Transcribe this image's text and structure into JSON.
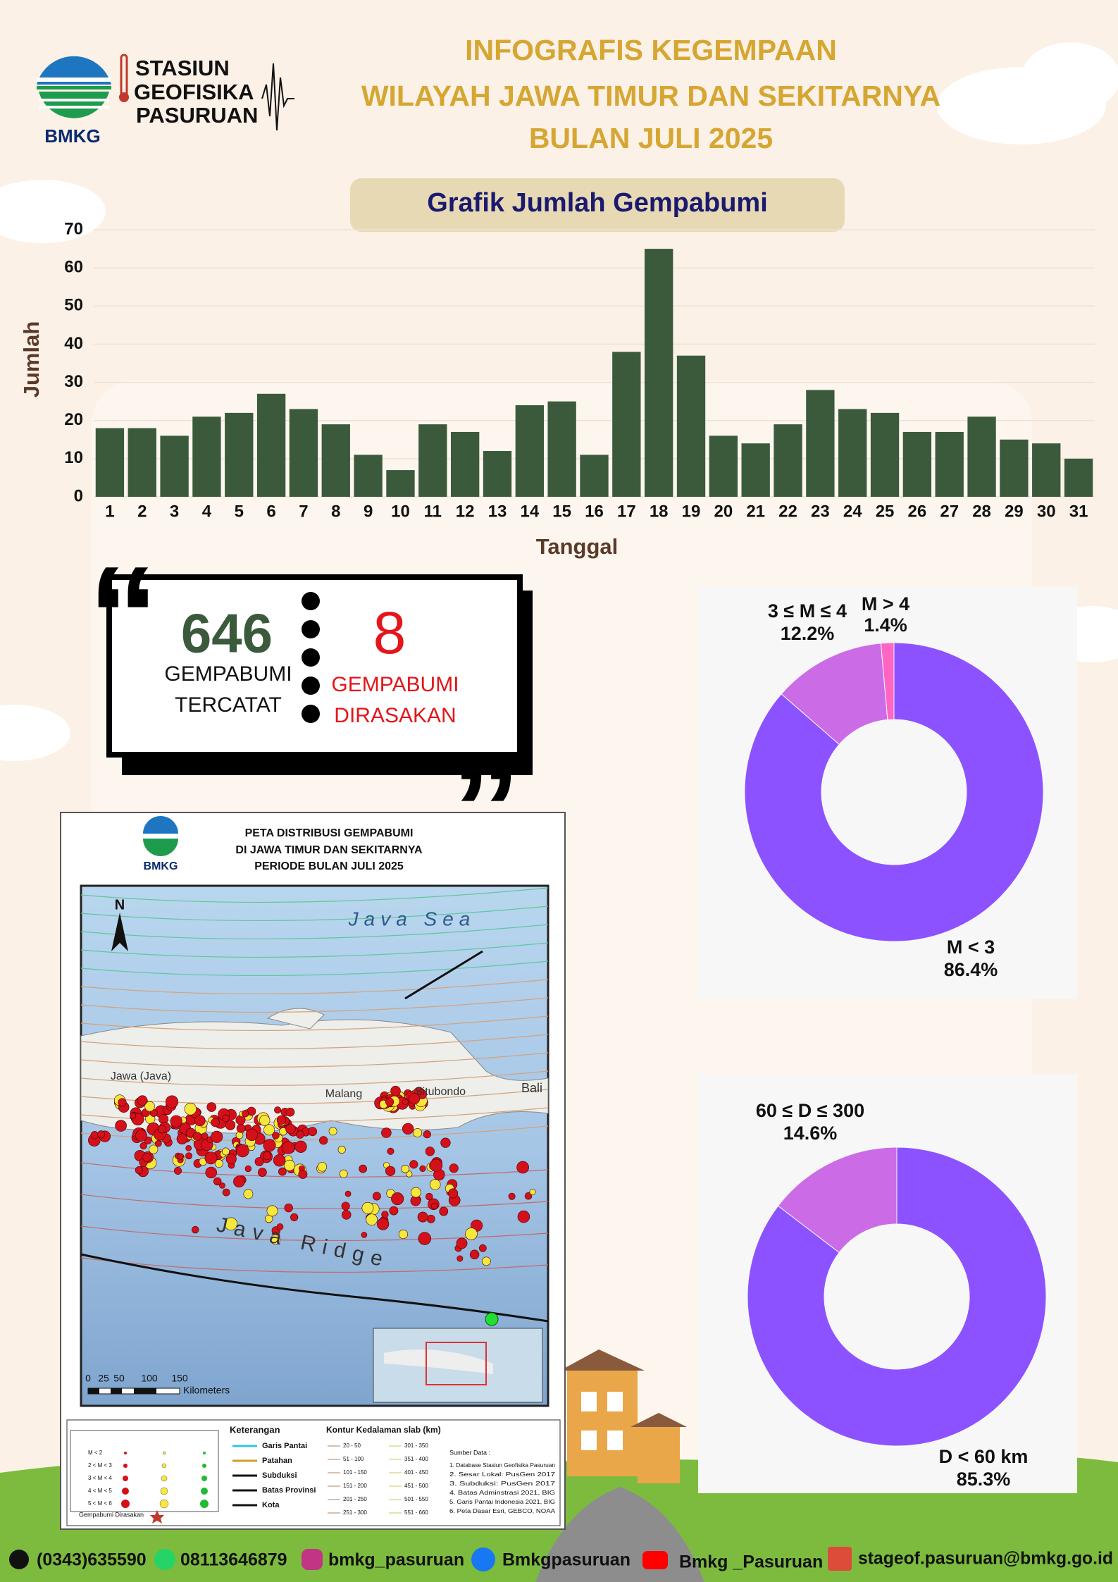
{
  "header": {
    "logo_text": "BMKG",
    "station": [
      "STASIUN",
      "GEOFISIKA",
      "PASURUAN"
    ],
    "title": [
      "INFOGRAFIS KEGEMPAAN",
      "WILAYAH JAWA TIMUR DAN SEKITARNYA",
      "BULAN JULI 2025"
    ]
  },
  "chart_data": [
    {
      "type": "bar",
      "title": "Grafik Jumlah Gempabumi",
      "xlabel": "Tanggal",
      "ylabel": "Jumlah",
      "categories": [
        "1",
        "2",
        "3",
        "4",
        "5",
        "6",
        "7",
        "8",
        "9",
        "10",
        "11",
        "12",
        "13",
        "14",
        "15",
        "16",
        "17",
        "18",
        "19",
        "20",
        "21",
        "22",
        "23",
        "24",
        "25",
        "26",
        "27",
        "28",
        "29",
        "30",
        "31"
      ],
      "values": [
        18,
        18,
        16,
        21,
        22,
        27,
        23,
        19,
        11,
        7,
        19,
        17,
        12,
        24,
        25,
        11,
        38,
        65,
        37,
        16,
        14,
        19,
        28,
        23,
        22,
        17,
        17,
        21,
        15,
        14,
        10
      ],
      "color": "#3b5a3c",
      "ylim": [
        0,
        70
      ],
      "yticks": [
        0,
        10,
        20,
        30,
        40,
        50,
        60,
        70
      ],
      "grid": true
    },
    {
      "type": "pie",
      "donut": true,
      "categories": [
        "M < 3",
        "3 ≤ M ≤ 4",
        "M > 4"
      ],
      "values": [
        86.4,
        12.2,
        1.4
      ],
      "value_labels": [
        "86.4%",
        "12.2%",
        "1.4%"
      ],
      "colors": [
        "#8c52ff",
        "#cb6ce6",
        "#ff66c4"
      ]
    },
    {
      "type": "pie",
      "donut": true,
      "categories": [
        "D < 60 km",
        "60 ≤ D ≤ 300"
      ],
      "values": [
        85.3,
        14.6
      ],
      "value_labels": [
        "85.3%",
        "14.6%"
      ],
      "colors": [
        "#8c52ff",
        "#cb6ce6"
      ]
    }
  ],
  "stats": {
    "recorded": 646,
    "recorded_label": [
      "GEMPABUMI",
      "TERCATAT"
    ],
    "felt": 8,
    "felt_label": [
      "GEMPABUMI",
      "DIRASAKAN"
    ]
  },
  "map": {
    "logo_text": "BMKG",
    "title": [
      "PETA DISTRIBUSI GEMPABUMI",
      "DI JAWA TIMUR DAN SEKITARNYA",
      "PERIODE BULAN  JULI 2025"
    ],
    "north": "N",
    "places": [
      "Java Sea",
      "Java Ridge",
      "Jawa (Java)",
      "Malang",
      "Situbondo",
      "Bali"
    ],
    "scale": [
      "0",
      "25",
      "50",
      "100",
      "150",
      "Kilometers"
    ],
    "magnitudes": [
      "M < 2",
      "2 < M < 3",
      "3 < M < 4",
      "4 < M < 5",
      "5 < M < 6"
    ],
    "felt": "Gempabumi Dirasakan",
    "legend_title": "Keterangan",
    "legend_items": [
      "Garis Pantai",
      "Patahan",
      "Subduksi",
      "Batas Provinsi",
      "Kota"
    ],
    "contour_title": "Kontur Kedalaman slab (km)",
    "contours": [
      "20 - 50",
      "51 - 100",
      "101 - 150",
      "151 - 200",
      "201 - 250",
      "251 - 300",
      "301 - 350",
      "351 - 400",
      "401 - 450",
      "451 - 500",
      "501 - 550",
      "551 - 660"
    ],
    "sources_title": "Sumber Data :",
    "sources": [
      "1. Database Stasiun Geofisika Pasuruan",
      "2. Sesar Lokal: PusGen 2017",
      "3. Subduksi: PusGen 2017",
      "4. Batas Adminstrasi 2021, BIG",
      "5. Garis Pantai Indonesia 2021, BIG",
      "6. Peta Dasar Esri, GEBCO, NOAA"
    ]
  },
  "footer": {
    "phone": "(0343)635590",
    "whatsapp": "08113646879",
    "instagram": "bmkg_pasuruan",
    "facebook": "Bmkgpasuruan",
    "youtube": "Bmkg _Pasuruan",
    "email": "stageof.pasuruan@bmkg.go.id"
  }
}
